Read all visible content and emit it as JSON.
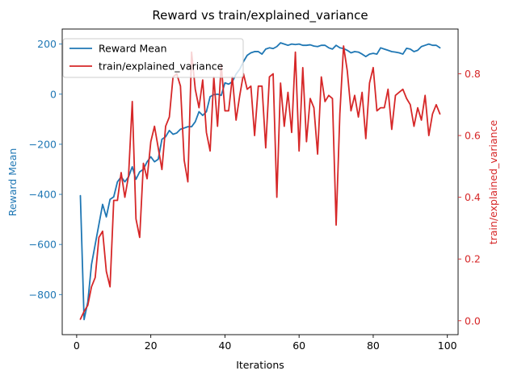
{
  "chart_data": {
    "type": "line",
    "title": "Reward vs train/explained_variance",
    "xlabel": "Iterations",
    "ylabel_left": "Reward Mean",
    "ylabel_right": "train/explained_variance",
    "xlim": [
      -3.9,
      102.9
    ],
    "ylim_left": [
      -960,
      260
    ],
    "ylim_right": [
      -0.045,
      0.945
    ],
    "x_ticks": [
      0,
      20,
      40,
      60,
      80,
      100
    ],
    "x_tick_labels": [
      "0",
      "20",
      "40",
      "60",
      "80",
      "100"
    ],
    "y_left_ticks": [
      200,
      0,
      -200,
      -400,
      -600,
      -800
    ],
    "y_left_tick_labels": [
      "200",
      "0",
      "−200",
      "−400",
      "−600",
      "−800"
    ],
    "y_right_ticks": [
      0.0,
      0.2,
      0.4,
      0.6,
      0.8
    ],
    "y_right_tick_labels": [
      "0.0",
      "0.2",
      "0.4",
      "0.6",
      "0.8"
    ],
    "legend_position": "top-left",
    "grid": false,
    "colors": {
      "left": "#1f77b4",
      "right": "#d62728"
    },
    "x": [
      1,
      2,
      3,
      4,
      5,
      6,
      7,
      8,
      9,
      10,
      11,
      12,
      13,
      14,
      15,
      16,
      17,
      18,
      19,
      20,
      21,
      22,
      23,
      24,
      25,
      26,
      27,
      28,
      29,
      30,
      31,
      32,
      33,
      34,
      35,
      36,
      37,
      38,
      39,
      40,
      41,
      42,
      43,
      44,
      45,
      46,
      47,
      48,
      49,
      50,
      51,
      52,
      53,
      54,
      55,
      56,
      57,
      58,
      59,
      60,
      61,
      62,
      63,
      64,
      65,
      66,
      67,
      68,
      69,
      70,
      71,
      72,
      73,
      74,
      75,
      76,
      77,
      78,
      79,
      80,
      81,
      82,
      83,
      84,
      85,
      86,
      87,
      88,
      89,
      90,
      91,
      92,
      93,
      94,
      95,
      96,
      97,
      98
    ],
    "series": [
      {
        "name": "Reward Mean",
        "axis": "left",
        "values": [
          -405,
          -900,
          -830,
          -680,
          -600,
          -520,
          -440,
          -490,
          -420,
          -410,
          -350,
          -330,
          -350,
          -330,
          -290,
          -340,
          -310,
          -300,
          -270,
          -250,
          -270,
          -260,
          -180,
          -170,
          -145,
          -160,
          -155,
          -140,
          -135,
          -130,
          -130,
          -110,
          -70,
          -85,
          -70,
          -10,
          -2,
          0,
          -5,
          45,
          40,
          50,
          80,
          100,
          130,
          155,
          165,
          170,
          170,
          160,
          180,
          185,
          182,
          190,
          205,
          200,
          195,
          200,
          198,
          200,
          195,
          195,
          197,
          192,
          190,
          195,
          195,
          185,
          180,
          195,
          185,
          182,
          175,
          165,
          170,
          168,
          160,
          150,
          160,
          163,
          160,
          185,
          180,
          175,
          170,
          168,
          165,
          160,
          183,
          180,
          170,
          175,
          190,
          195,
          200,
          195,
          195,
          185
        ]
      },
      {
        "name": "train/explained_variance",
        "axis": "right",
        "values": [
          0.005,
          0.03,
          0.05,
          0.11,
          0.14,
          0.27,
          0.29,
          0.16,
          0.11,
          0.39,
          0.39,
          0.48,
          0.4,
          0.47,
          0.71,
          0.33,
          0.27,
          0.51,
          0.46,
          0.58,
          0.63,
          0.56,
          0.49,
          0.63,
          0.66,
          0.79,
          0.8,
          0.76,
          0.52,
          0.45,
          0.87,
          0.75,
          0.69,
          0.78,
          0.61,
          0.55,
          0.79,
          0.63,
          0.83,
          0.68,
          0.68,
          0.79,
          0.65,
          0.73,
          0.8,
          0.75,
          0.76,
          0.6,
          0.76,
          0.76,
          0.56,
          0.79,
          0.8,
          0.4,
          0.77,
          0.63,
          0.74,
          0.61,
          0.87,
          0.55,
          0.82,
          0.58,
          0.72,
          0.69,
          0.54,
          0.79,
          0.71,
          0.73,
          0.72,
          0.31,
          0.67,
          0.89,
          0.81,
          0.68,
          0.73,
          0.66,
          0.74,
          0.59,
          0.77,
          0.82,
          0.68,
          0.69,
          0.69,
          0.75,
          0.62,
          0.73,
          0.74,
          0.75,
          0.72,
          0.7,
          0.63,
          0.69,
          0.65,
          0.73,
          0.6,
          0.67,
          0.7,
          0.67
        ]
      }
    ]
  }
}
